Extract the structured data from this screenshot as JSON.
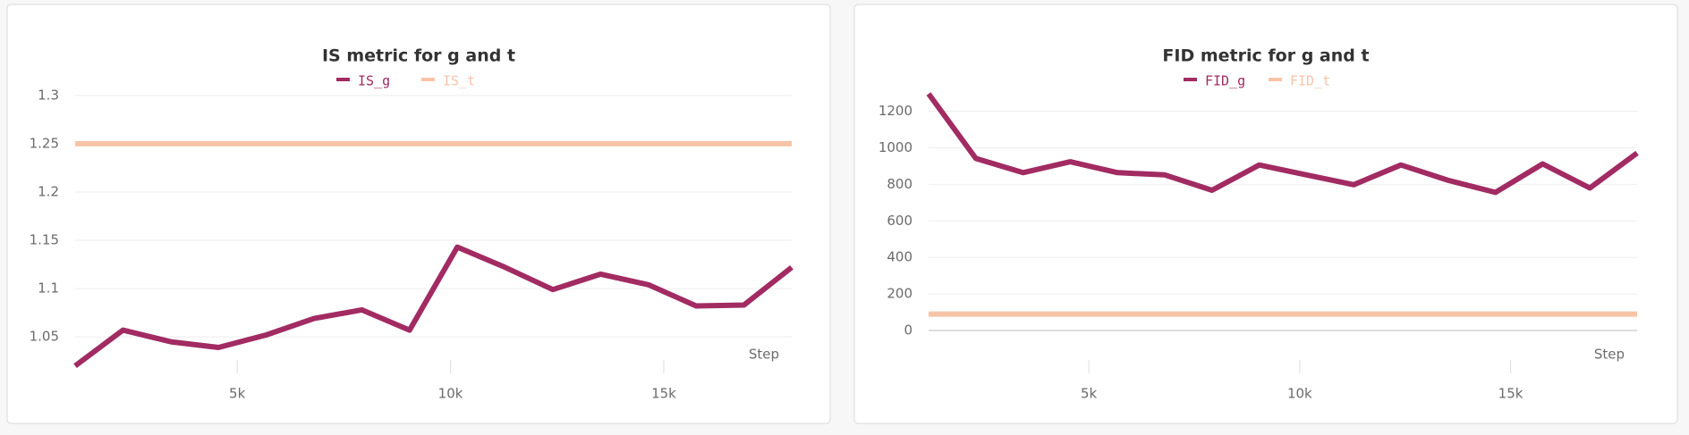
{
  "chart_data": [
    {
      "type": "line",
      "title": "IS metric for g and t",
      "x_label": "Step",
      "x": [
        1200,
        2320,
        3440,
        4560,
        5680,
        6800,
        7920,
        9040,
        10160,
        11280,
        12400,
        13520,
        14640,
        15760,
        16880,
        18000
      ],
      "series": [
        {
          "name": "IS_g",
          "color": "#a12b62",
          "values": [
            1.02,
            1.057,
            1.045,
            1.039,
            1.052,
            1.069,
            1.078,
            1.057,
            1.143,
            1.122,
            1.099,
            1.115,
            1.104,
            1.082,
            1.083,
            1.122
          ]
        },
        {
          "name": "IS_t",
          "color": "#f7c4a8",
          "values": [
            1.25,
            1.25,
            1.25,
            1.25,
            1.25,
            1.25,
            1.25,
            1.25,
            1.25,
            1.25,
            1.25,
            1.25,
            1.25,
            1.25,
            1.25,
            1.25
          ]
        }
      ],
      "xlim": [
        1200,
        18000
      ],
      "xticks": [
        {
          "value": 5000,
          "label": "5k"
        },
        {
          "value": 10000,
          "label": "10k"
        },
        {
          "value": 15000,
          "label": "15k"
        }
      ],
      "ylim": [
        1.015,
        1.31
      ],
      "yticks": [
        1.05,
        1.1,
        1.15,
        1.2,
        1.25,
        1.3
      ],
      "grid": true
    },
    {
      "type": "line",
      "title": "FID metric for g and t",
      "x_label": "Step",
      "x": [
        1200,
        2320,
        3440,
        4560,
        5680,
        6800,
        7920,
        9040,
        10160,
        11280,
        12400,
        13520,
        14640,
        15760,
        16880,
        18000
      ],
      "series": [
        {
          "name": "FID_g",
          "color": "#a12b62",
          "values": [
            1296,
            942,
            864,
            924,
            864,
            852,
            768,
            906,
            852,
            798,
            906,
            822,
            756,
            912,
            780,
            972
          ]
        },
        {
          "name": "FID_t",
          "color": "#f7c4a8",
          "values": [
            90,
            90,
            90,
            90,
            90,
            90,
            90,
            90,
            90,
            90,
            90,
            90,
            90,
            90,
            90,
            90
          ]
        }
      ],
      "xlim": [
        1200,
        18000
      ],
      "xticks": [
        {
          "value": 5000,
          "label": "5k"
        },
        {
          "value": 10000,
          "label": "10k"
        },
        {
          "value": 15000,
          "label": "15k"
        }
      ],
      "ylim": [
        -220,
        1340
      ],
      "yticks": [
        0,
        200,
        400,
        600,
        800,
        1000,
        1200
      ],
      "grid": true
    }
  ]
}
